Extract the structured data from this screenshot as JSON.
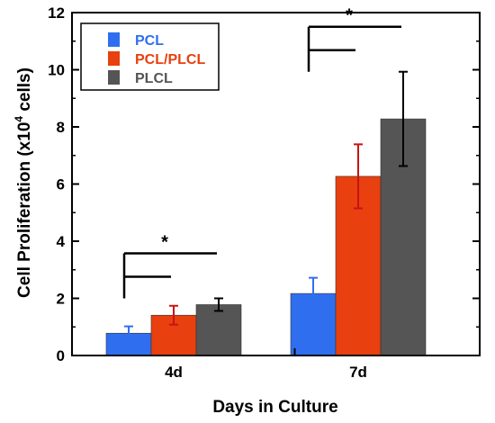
{
  "chart_data": {
    "type": "bar",
    "categories": [
      "4d",
      "7d"
    ],
    "series": [
      {
        "name": "PCL",
        "color": "#2f6fef",
        "err_color": "#2f6fef",
        "values": [
          0.78,
          2.17
        ],
        "errors": [
          0.24,
          0.55
        ]
      },
      {
        "name": "PCL/PLCL",
        "color": "#e8400f",
        "err_color": "#c81414",
        "values": [
          1.41,
          6.27
        ],
        "errors": [
          0.33,
          1.12
        ]
      },
      {
        "name": "PLCL",
        "color": "#555555",
        "err_color": "#000000",
        "values": [
          1.78,
          8.28
        ],
        "errors": [
          0.22,
          1.65
        ]
      }
    ],
    "xlabel": "Days in Culture",
    "ylabel": "Cell Proliferation (x10",
    "ylabel_exp": "4",
    "ylabel_suffix": " cells)",
    "ylim": [
      0,
      12
    ],
    "yticks": [
      0,
      2,
      4,
      6,
      8,
      10,
      12
    ],
    "grid": false,
    "legend_position": "top-left",
    "significance_marker": "*"
  }
}
